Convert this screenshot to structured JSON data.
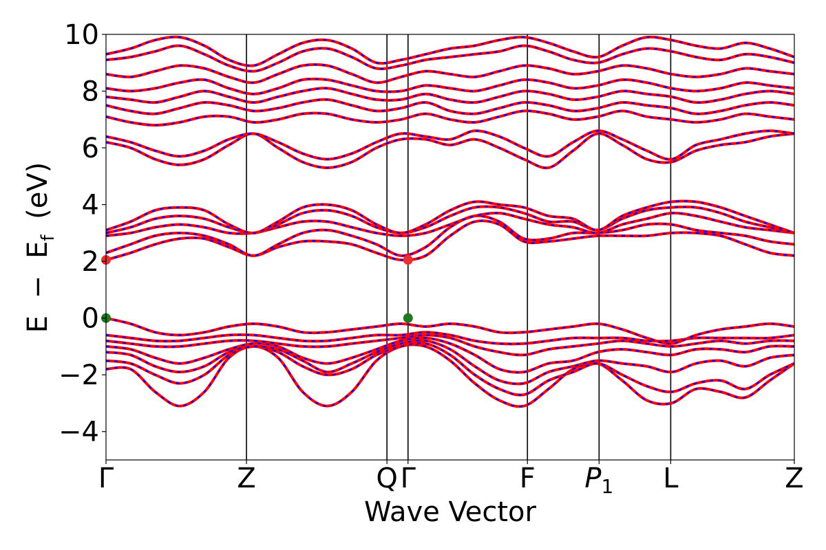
{
  "chart_data": {
    "type": "line",
    "title": "",
    "xlabel": "Wave Vector",
    "ylabel": "E − E_f (eV)",
    "ylabel_parts": {
      "a": "E",
      "minus": "−",
      "b": "E",
      "sub": "f",
      "unit": "(eV)"
    },
    "ylim": [
      -5,
      10
    ],
    "yticks": [
      -4,
      -2,
      0,
      2,
      4,
      6,
      8,
      10
    ],
    "ytick_labels": [
      "−4",
      "−2",
      "0",
      "2",
      "4",
      "6",
      "8",
      "10"
    ],
    "grid": false,
    "legend": "none",
    "kpoints": [
      {
        "label": "Γ",
        "sub": "",
        "pos": 0.0
      },
      {
        "label": "Z",
        "sub": "",
        "pos": 1.0
      },
      {
        "label": "Q",
        "sub": "",
        "pos": 2.0
      },
      {
        "label": "Γ",
        "sub": "",
        "pos": 2.15
      },
      {
        "label": "F",
        "sub": "",
        "pos": 3.0
      },
      {
        "label": "P",
        "sub": "1",
        "pos": 3.51
      },
      {
        "label": "L",
        "sub": "",
        "pos": 4.02
      },
      {
        "label": "Z",
        "sub": "",
        "pos": 4.9
      }
    ],
    "band_colors": {
      "solid": "#ff0000",
      "dashed": "#0000ff"
    },
    "extrema_points": [
      {
        "name": "cbm",
        "x": 0.0,
        "y": 2.05,
        "color": "#e8312f"
      },
      {
        "name": "cbm",
        "x": 2.15,
        "y": 2.05,
        "color": "#e8312f"
      },
      {
        "name": "vbm",
        "x": 0.0,
        "y": 0.0,
        "color": "#1f7a1f"
      },
      {
        "name": "vbm",
        "x": 2.15,
        "y": 0.0,
        "color": "#1f7a1f"
      }
    ],
    "series": [
      {
        "values": [
          -1.8,
          -1.8,
          -2.6,
          -3.1,
          -2.6,
          -1.4,
          -1.0,
          -1.4,
          -2.6,
          -3.1,
          -2.6,
          -1.5,
          -1.0,
          -1.0,
          -1.5,
          -2.3,
          -2.9,
          -3.1,
          -2.5,
          -1.8,
          -1.6,
          -2.2,
          -2.9,
          -3.0,
          -2.5,
          -2.6,
          -2.8,
          -2.2,
          -1.6
        ]
      },
      {
        "values": [
          -1.5,
          -1.6,
          -2.0,
          -2.3,
          -2.0,
          -1.3,
          -1.0,
          -1.2,
          -1.7,
          -2.0,
          -1.8,
          -1.3,
          -1.0,
          -0.9,
          -1.3,
          -2.0,
          -2.5,
          -2.7,
          -2.2,
          -1.9,
          -1.6,
          -2.0,
          -2.4,
          -2.6,
          -2.3,
          -2.2,
          -2.5,
          -2.0,
          -1.6
        ]
      },
      {
        "values": [
          -1.2,
          -1.3,
          -1.7,
          -1.9,
          -1.7,
          -1.2,
          -1.0,
          -1.1,
          -1.5,
          -1.9,
          -1.6,
          -1.2,
          -0.9,
          -0.8,
          -1.1,
          -1.7,
          -2.2,
          -2.3,
          -1.9,
          -1.7,
          -1.5,
          -1.6,
          -1.7,
          -1.9,
          -1.6,
          -1.5,
          -1.7,
          -1.4,
          -1.3
        ]
      },
      {
        "values": [
          -1.0,
          -1.1,
          -1.4,
          -1.6,
          -1.4,
          -1.1,
          -0.9,
          -1.0,
          -1.4,
          -1.6,
          -1.4,
          -1.1,
          -0.8,
          -0.7,
          -0.9,
          -1.3,
          -1.8,
          -1.9,
          -1.6,
          -1.5,
          -1.2,
          -1.1,
          -1.2,
          -1.3,
          -1.1,
          -1.1,
          -1.2,
          -1.0,
          -1.0
        ]
      },
      {
        "values": [
          -0.8,
          -0.9,
          -1.0,
          -1.0,
          -0.9,
          -0.8,
          -0.8,
          -0.9,
          -1.0,
          -1.0,
          -0.9,
          -0.8,
          -0.7,
          -0.6,
          -0.7,
          -1.0,
          -1.2,
          -1.3,
          -1.1,
          -1.0,
          -0.9,
          -0.8,
          -0.9,
          -1.0,
          -0.9,
          -0.8,
          -0.9,
          -0.8,
          -0.8
        ]
      },
      {
        "values": [
          -0.6,
          -0.7,
          -0.8,
          -0.8,
          -0.7,
          -0.6,
          -0.6,
          -0.7,
          -0.8,
          -0.8,
          -0.7,
          -0.6,
          -0.6,
          -0.5,
          -0.6,
          -0.8,
          -0.9,
          -0.9,
          -0.8,
          -0.7,
          -0.7,
          -0.7,
          -0.8,
          -0.8,
          -0.7,
          -0.7,
          -0.7,
          -0.7,
          -0.6
        ]
      },
      {
        "values": [
          0.0,
          -0.2,
          -0.5,
          -0.6,
          -0.5,
          -0.3,
          -0.2,
          -0.3,
          -0.5,
          -0.5,
          -0.4,
          -0.3,
          -0.2,
          -0.3,
          -0.2,
          -0.3,
          -0.5,
          -0.5,
          -0.4,
          -0.3,
          -0.2,
          -0.4,
          -0.7,
          -0.9,
          -0.6,
          -0.4,
          -0.3,
          -0.2,
          -0.3
        ]
      },
      {
        "values": [
          2.05,
          2.3,
          2.6,
          2.8,
          2.8,
          2.5,
          2.2,
          2.5,
          2.7,
          2.7,
          2.6,
          2.3,
          2.05,
          2.2,
          2.9,
          3.4,
          3.3,
          2.7,
          2.7,
          2.8,
          2.9,
          2.9,
          2.9,
          3.0,
          3.0,
          2.9,
          2.6,
          2.3,
          2.2
        ]
      },
      {
        "values": [
          2.3,
          2.6,
          2.9,
          3.0,
          2.9,
          2.6,
          2.2,
          2.6,
          3.0,
          3.1,
          2.9,
          2.6,
          2.2,
          2.5,
          3.2,
          3.6,
          3.4,
          2.8,
          2.8,
          3.0,
          3.0,
          3.1,
          3.3,
          3.3,
          3.1,
          3.0,
          2.9,
          2.7,
          2.6
        ]
      },
      {
        "values": [
          2.9,
          3.0,
          3.2,
          3.3,
          3.2,
          3.0,
          3.0,
          3.2,
          3.4,
          3.4,
          3.2,
          3.0,
          2.9,
          3.0,
          3.3,
          3.6,
          3.7,
          3.5,
          3.3,
          3.2,
          3.0,
          3.3,
          3.5,
          3.7,
          3.6,
          3.4,
          3.2,
          3.1,
          3.0
        ]
      },
      {
        "values": [
          3.0,
          3.2,
          3.5,
          3.6,
          3.5,
          3.2,
          3.0,
          3.3,
          3.7,
          3.8,
          3.6,
          3.2,
          3.0,
          3.2,
          3.6,
          3.9,
          3.9,
          3.7,
          3.4,
          3.4,
          3.1,
          3.5,
          3.8,
          3.9,
          3.9,
          3.7,
          3.4,
          3.2,
          3.0
        ]
      },
      {
        "values": [
          3.1,
          3.4,
          3.8,
          3.9,
          3.8,
          3.3,
          3.0,
          3.4,
          3.9,
          4.0,
          3.8,
          3.3,
          3.0,
          3.3,
          3.8,
          4.1,
          4.0,
          3.9,
          3.6,
          3.5,
          3.1,
          3.6,
          3.9,
          4.1,
          4.1,
          3.9,
          3.6,
          3.3,
          3.0
        ]
      },
      {
        "values": [
          6.2,
          6.0,
          5.6,
          5.4,
          5.6,
          6.1,
          6.5,
          6.0,
          5.5,
          5.3,
          5.5,
          6.0,
          6.3,
          6.3,
          6.1,
          6.3,
          6.0,
          5.6,
          5.3,
          5.9,
          6.5,
          6.1,
          5.6,
          5.5,
          5.9,
          6.1,
          6.2,
          6.4,
          6.5
        ]
      },
      {
        "values": [
          6.4,
          6.2,
          5.9,
          5.7,
          5.9,
          6.3,
          6.5,
          6.2,
          5.8,
          5.6,
          5.8,
          6.2,
          6.5,
          6.4,
          6.3,
          6.6,
          6.4,
          6.0,
          5.7,
          6.2,
          6.6,
          6.3,
          5.9,
          5.6,
          6.1,
          6.3,
          6.5,
          6.6,
          6.5
        ]
      },
      {
        "values": [
          7.1,
          6.9,
          6.8,
          6.9,
          7.1,
          7.1,
          6.9,
          7.0,
          7.2,
          7.2,
          7.0,
          6.9,
          7.0,
          7.2,
          7.0,
          6.9,
          7.1,
          7.3,
          7.2,
          7.0,
          7.1,
          7.3,
          7.1,
          7.0,
          6.9,
          7.0,
          7.2,
          7.1,
          7.0
        ]
      },
      {
        "values": [
          7.5,
          7.3,
          7.2,
          7.4,
          7.6,
          7.5,
          7.3,
          7.4,
          7.6,
          7.7,
          7.5,
          7.3,
          7.4,
          7.6,
          7.3,
          7.2,
          7.4,
          7.6,
          7.5,
          7.3,
          7.4,
          7.6,
          7.5,
          7.4,
          7.2,
          7.3,
          7.5,
          7.6,
          7.5
        ]
      },
      {
        "values": [
          7.8,
          7.7,
          7.6,
          7.8,
          8.0,
          7.8,
          7.6,
          7.8,
          8.0,
          8.1,
          7.9,
          7.7,
          7.7,
          7.9,
          7.7,
          7.6,
          7.8,
          8.0,
          7.9,
          7.7,
          7.8,
          8.0,
          7.9,
          7.8,
          7.6,
          7.7,
          7.9,
          8.0,
          7.9
        ]
      },
      {
        "values": [
          8.1,
          8.0,
          8.1,
          8.3,
          8.4,
          8.1,
          7.9,
          8.1,
          8.4,
          8.4,
          8.2,
          8.0,
          8.0,
          8.2,
          8.1,
          8.0,
          8.2,
          8.4,
          8.3,
          8.1,
          8.2,
          8.4,
          8.3,
          8.1,
          8.0,
          8.1,
          8.3,
          8.2,
          8.1
        ]
      },
      {
        "values": [
          8.6,
          8.5,
          8.7,
          8.9,
          8.8,
          8.5,
          8.3,
          8.6,
          8.9,
          8.9,
          8.6,
          8.3,
          8.5,
          8.7,
          8.6,
          8.5,
          8.7,
          8.9,
          8.8,
          8.6,
          8.7,
          8.9,
          8.8,
          8.6,
          8.5,
          8.6,
          8.8,
          8.7,
          8.6
        ]
      },
      {
        "values": [
          9.1,
          9.2,
          9.4,
          9.6,
          9.3,
          8.9,
          8.7,
          9.0,
          9.4,
          9.5,
          9.2,
          8.8,
          8.9,
          9.1,
          9.2,
          9.3,
          9.4,
          9.6,
          9.4,
          9.1,
          9.0,
          9.3,
          9.5,
          9.4,
          9.2,
          9.1,
          9.3,
          9.2,
          9.0
        ]
      },
      {
        "values": [
          9.3,
          9.5,
          9.8,
          9.9,
          9.6,
          9.1,
          8.9,
          9.3,
          9.7,
          9.8,
          9.5,
          9.0,
          9.1,
          9.3,
          9.5,
          9.6,
          9.8,
          9.9,
          9.7,
          9.4,
          9.2,
          9.6,
          9.9,
          9.8,
          9.6,
          9.5,
          9.7,
          9.5,
          9.2
        ]
      }
    ]
  }
}
